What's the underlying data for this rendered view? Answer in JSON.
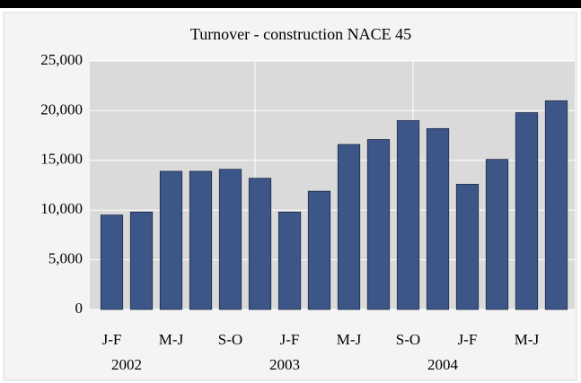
{
  "chart_data": {
    "type": "bar",
    "title": "Turnover - construction NACE 45",
    "categories": [
      "J-F",
      null,
      "M-J",
      null,
      "S-O",
      null,
      "J-F",
      null,
      "M-J",
      null,
      "S-O",
      null,
      "J-F",
      null,
      "M-J",
      null
    ],
    "year_labels": [
      "2002",
      "2003",
      "2004"
    ],
    "values": [
      9500,
      9800,
      13900,
      13900,
      14100,
      13200,
      9800,
      11900,
      16600,
      17100,
      19000,
      18200,
      12600,
      15100,
      19800,
      21000
    ],
    "color": "#3d5688",
    "ylim": [
      0,
      25000
    ],
    "yticks": [
      0,
      {
        "value": 5000,
        "label": "5,000"
      },
      {
        "value": 10000,
        "label": "10,000"
      },
      {
        "value": 15000,
        "label": "15,000"
      },
      {
        "value": 20000,
        "label": "20,000"
      },
      {
        "value": 25000,
        "label": "25,000"
      }
    ],
    "grid": true
  }
}
